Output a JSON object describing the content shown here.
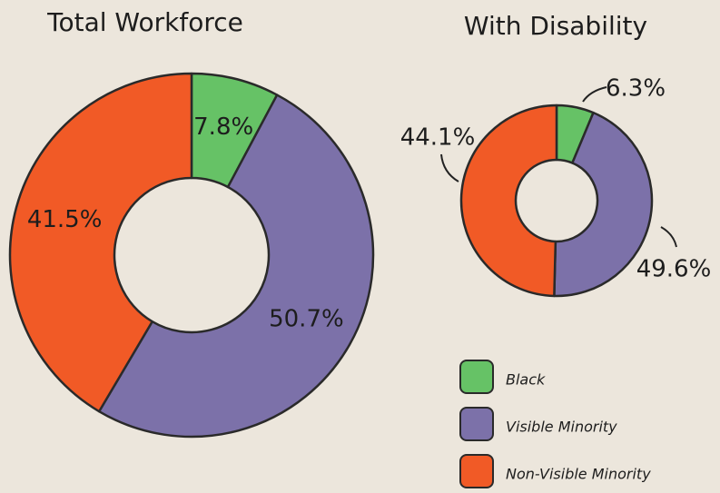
{
  "chart_data": [
    {
      "type": "donut",
      "title": "Total Workforce",
      "categories": [
        "Black",
        "Visible Minority",
        "Non-Visible Minority"
      ],
      "colors": [
        "#66c266",
        "#7c71a9",
        "#f15a26"
      ],
      "values": [
        7.8,
        50.7,
        41.5
      ],
      "value_labels": [
        "7.8%",
        "50.7%",
        "41.5%"
      ]
    },
    {
      "type": "donut",
      "title": "With Disability",
      "categories": [
        "Black",
        "Visible Minority",
        "Non-Visible Minority"
      ],
      "colors": [
        "#66c266",
        "#7c71a9",
        "#f15a26"
      ],
      "values": [
        6.3,
        44.1,
        49.6
      ],
      "value_labels": [
        "6.3%",
        "44.1%",
        "49.6%"
      ]
    }
  ]
}
